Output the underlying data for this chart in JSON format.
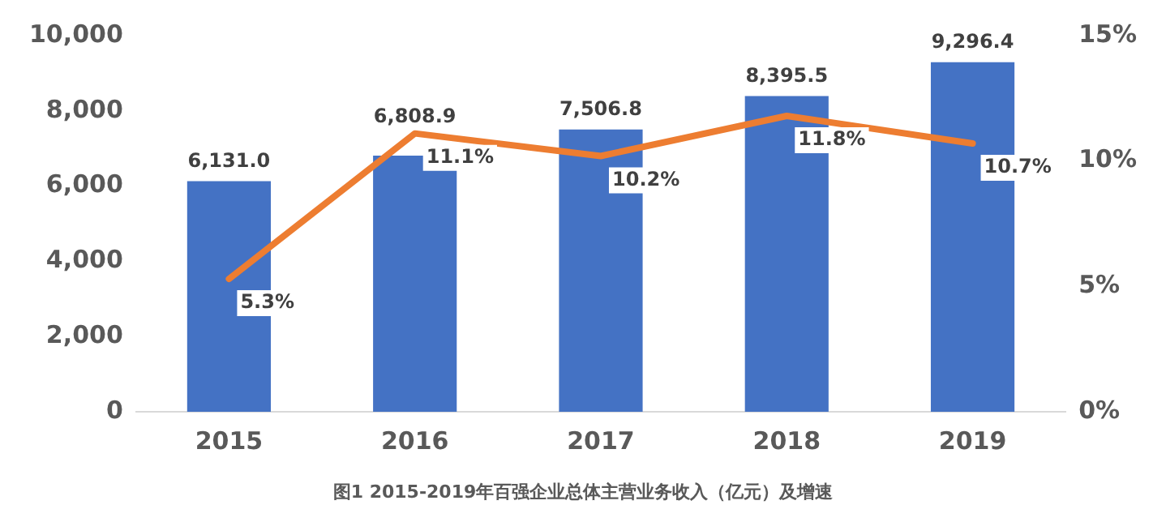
{
  "chart_data": {
    "type": "bar",
    "title": "图1  2015-2019年百强企业总体主营业务收入（亿元）及增速",
    "categories": [
      "2015",
      "2016",
      "2017",
      "2018",
      "2019"
    ],
    "series": [
      {
        "type": "bar",
        "color": "#4472c4",
        "values": [
          6131.0,
          6808.9,
          7506.8,
          8395.5,
          9296.4
        ],
        "value_labels": [
          "6,131.0",
          "6,808.9",
          "7,506.8",
          "8,395.5",
          "9,296.4"
        ]
      },
      {
        "type": "line",
        "axis": "y2",
        "color": "#ed7d31",
        "values": [
          5.3,
          11.1,
          10.2,
          11.8,
          10.7
        ],
        "value_labels": [
          "5.3%",
          "11.1%",
          "10.2%",
          "11.8%",
          "10.7%"
        ]
      }
    ],
    "ylim": [
      0,
      10000
    ],
    "yticks": [
      {
        "value": 0,
        "label": "0"
      },
      {
        "value": 2000,
        "label": "2,000"
      },
      {
        "value": 4000,
        "label": "4,000"
      },
      {
        "value": 6000,
        "label": "6,000"
      },
      {
        "value": 8000,
        "label": "8,000"
      },
      {
        "value": 10000,
        "label": "10,000"
      }
    ],
    "y2lim": [
      0,
      15
    ],
    "y2ticks": [
      {
        "value": 0,
        "label": "0%"
      },
      {
        "value": 5,
        "label": "5%"
      },
      {
        "value": 10,
        "label": "10%"
      },
      {
        "value": 15,
        "label": "15%"
      }
    ],
    "grid": false,
    "legend": false,
    "marker": "none"
  }
}
